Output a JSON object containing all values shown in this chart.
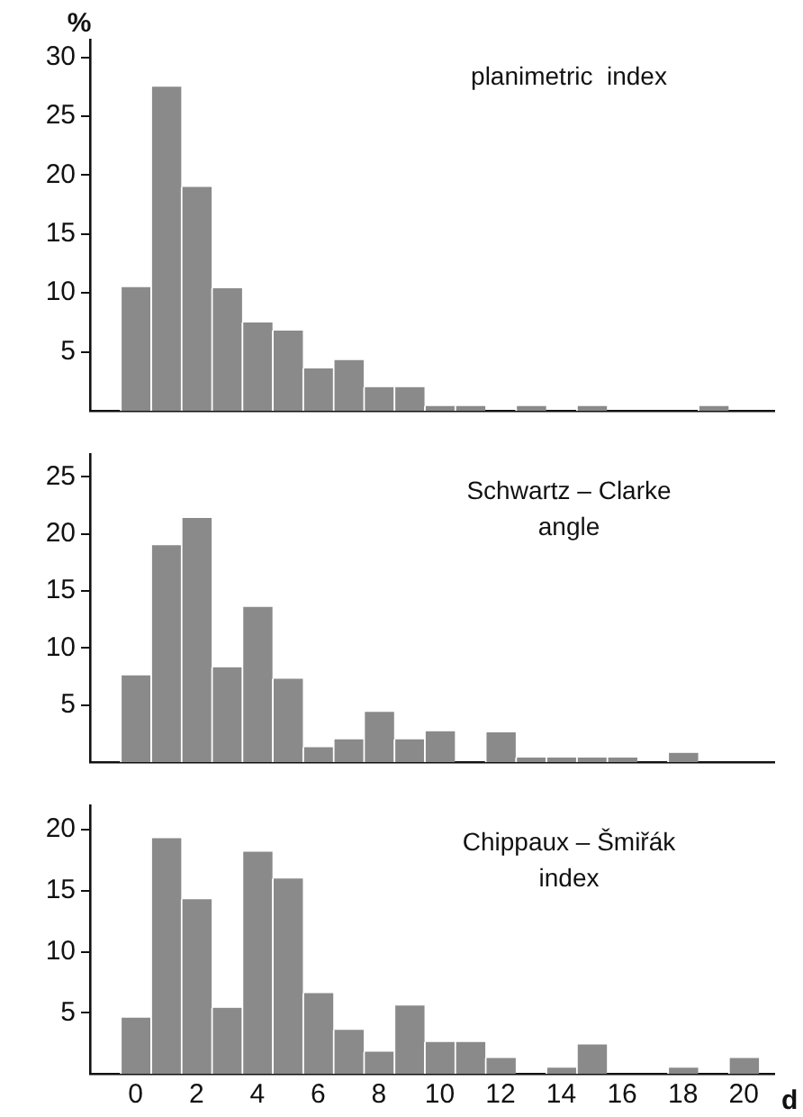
{
  "chart_data": [
    {
      "type": "histogram",
      "title": "planimetric  index",
      "ylabel": "%",
      "color": "#8a8a8a",
      "bins": [
        -0.5,
        0.5,
        1.5,
        2.5,
        3.5,
        4.5,
        5.5,
        6.5,
        7.5,
        8.5,
        9.5,
        10.5,
        11.5,
        12.5,
        13.5,
        14.5,
        15.5,
        16.5,
        17.5,
        18.5,
        19.5,
        20.5
      ],
      "values": [
        10.5,
        27.5,
        19,
        10.4,
        7.5,
        6.8,
        3.6,
        4.3,
        2,
        2,
        0.4,
        0.4,
        0,
        0.4,
        0,
        0.4,
        0,
        0,
        0,
        0.4,
        0
      ],
      "xlim": [
        -1.5,
        21
      ],
      "xticks": [
        0,
        2,
        4,
        6,
        8,
        10,
        12,
        14,
        16,
        18,
        20
      ],
      "ylim": [
        0,
        31.5
      ],
      "yticks": [
        5,
        10,
        15,
        20,
        25,
        30
      ],
      "tick_labels": "y"
    },
    {
      "type": "histogram",
      "title": "Schwartz – Clarke\nangle",
      "color": "#8a8a8a",
      "bins": [
        -0.5,
        0.5,
        1.5,
        2.5,
        3.5,
        4.5,
        5.5,
        6.5,
        7.5,
        8.5,
        9.5,
        10.5,
        11.5,
        12.5,
        13.5,
        14.5,
        15.5,
        16.5,
        17.5,
        18.5,
        19.5,
        20.5
      ],
      "values": [
        7.6,
        19,
        21.4,
        8.3,
        13.6,
        7.3,
        1.3,
        2,
        4.4,
        2,
        2.7,
        0,
        2.6,
        0.4,
        0.4,
        0.4,
        0.4,
        0,
        0.8,
        0,
        0
      ],
      "xlim": [
        -1.5,
        21
      ],
      "xticks": [
        0,
        2,
        4,
        6,
        8,
        10,
        12,
        14,
        16,
        18,
        20
      ],
      "ylim": [
        0,
        27
      ],
      "yticks": [
        5,
        10,
        15,
        20,
        25
      ],
      "tick_labels": "y"
    },
    {
      "type": "histogram",
      "title": "Chippaux – Šmiřák\nindex",
      "xlabel": "d",
      "color": "#8a8a8a",
      "bins": [
        -0.5,
        0.5,
        1.5,
        2.5,
        3.5,
        4.5,
        5.5,
        6.5,
        7.5,
        8.5,
        9.5,
        10.5,
        11.5,
        12.5,
        13.5,
        14.5,
        15.5,
        16.5,
        17.5,
        18.5,
        19.5,
        20.5
      ],
      "values": [
        4.6,
        19.3,
        14.3,
        5.4,
        18.2,
        16,
        6.6,
        3.6,
        1.8,
        5.6,
        2.6,
        2.6,
        1.3,
        0,
        0.5,
        2.4,
        0,
        0,
        0.5,
        0,
        1.3
      ],
      "xlim": [
        -1.5,
        21
      ],
      "xticks": [
        0,
        2,
        4,
        6,
        8,
        10,
        12,
        14,
        16,
        18,
        20
      ],
      "ylim": [
        0,
        22
      ],
      "yticks": [
        5,
        10,
        15,
        20
      ]
    }
  ]
}
